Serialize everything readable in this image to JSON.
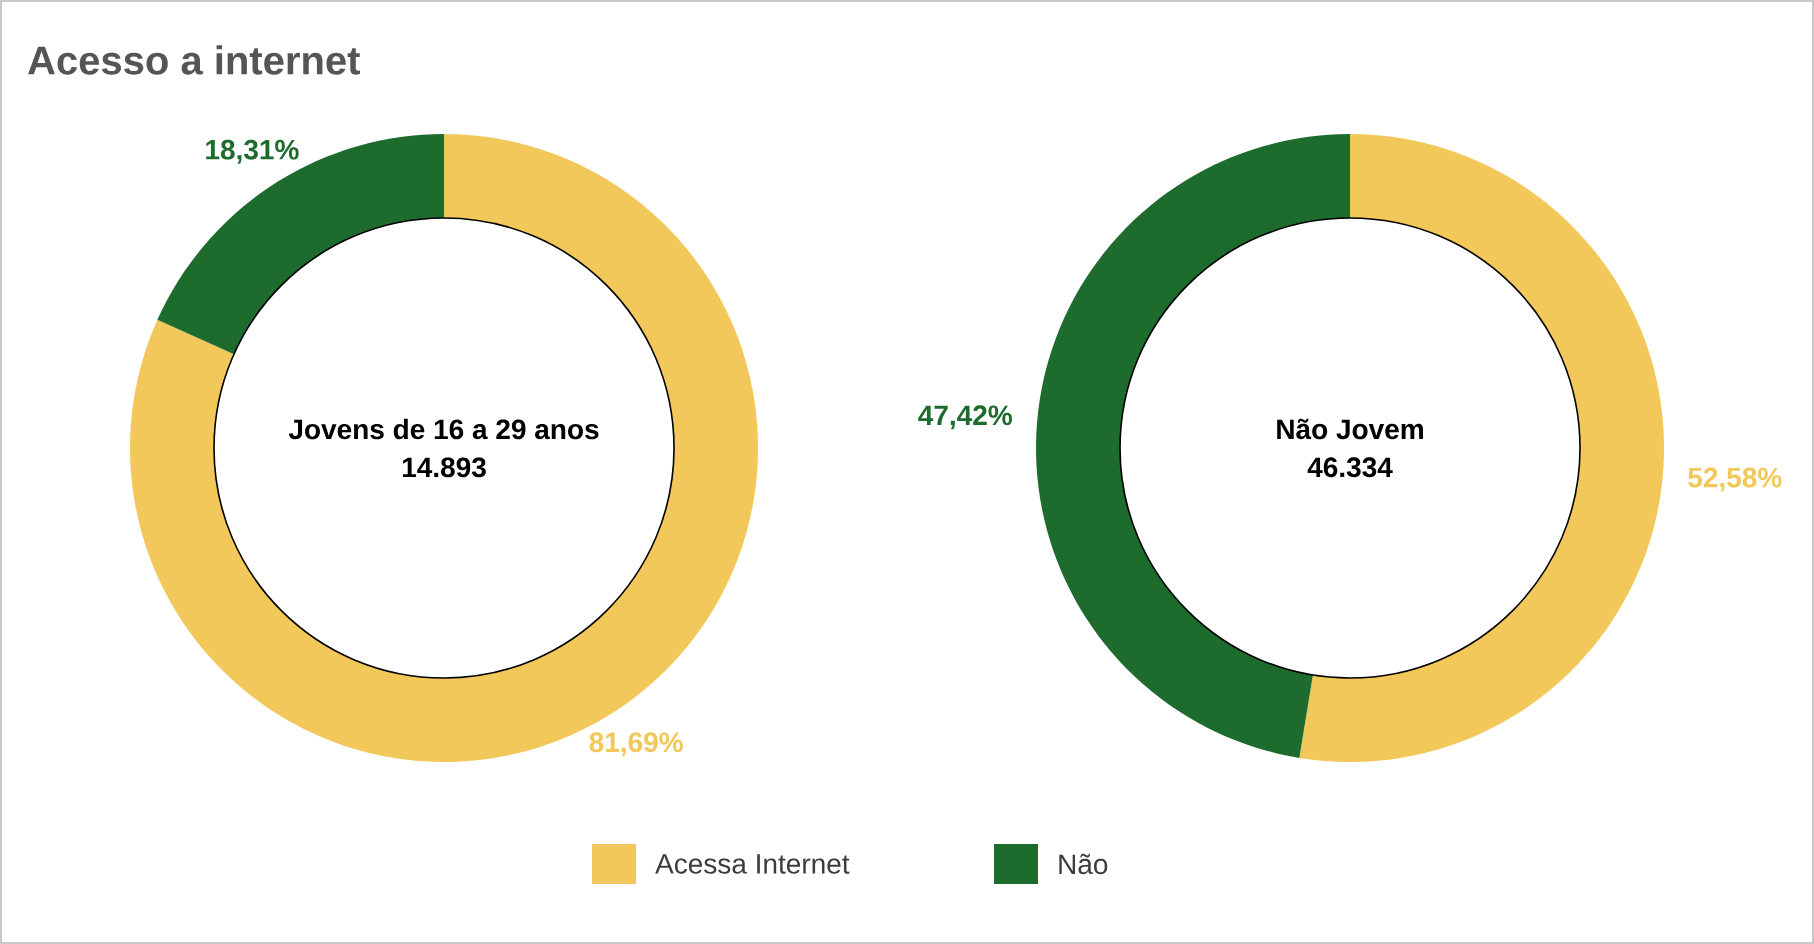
{
  "chart_data": [
    {
      "type": "donut",
      "title": "Acesso a internet",
      "categories": [
        "Acessa Internet",
        "Não"
      ],
      "values": [
        81.69,
        18.31
      ],
      "colors": [
        "#f2c85b",
        "#1e6b2e"
      ],
      "value_labels": [
        "81,69%",
        "18,31%"
      ],
      "annotations": [
        "Jovens de 16 a 29 anos",
        "14.893"
      ],
      "legend": "bottom"
    },
    {
      "type": "donut",
      "categories": [
        null,
        null
      ],
      "values": [
        52.58,
        47.42
      ],
      "colors": [
        "#f2c85b",
        "#1e6b2e"
      ],
      "value_labels": [
        "52,58%",
        "47,42%"
      ],
      "annotations": [
        "Não Jovem",
        "46.334"
      ]
    }
  ]
}
